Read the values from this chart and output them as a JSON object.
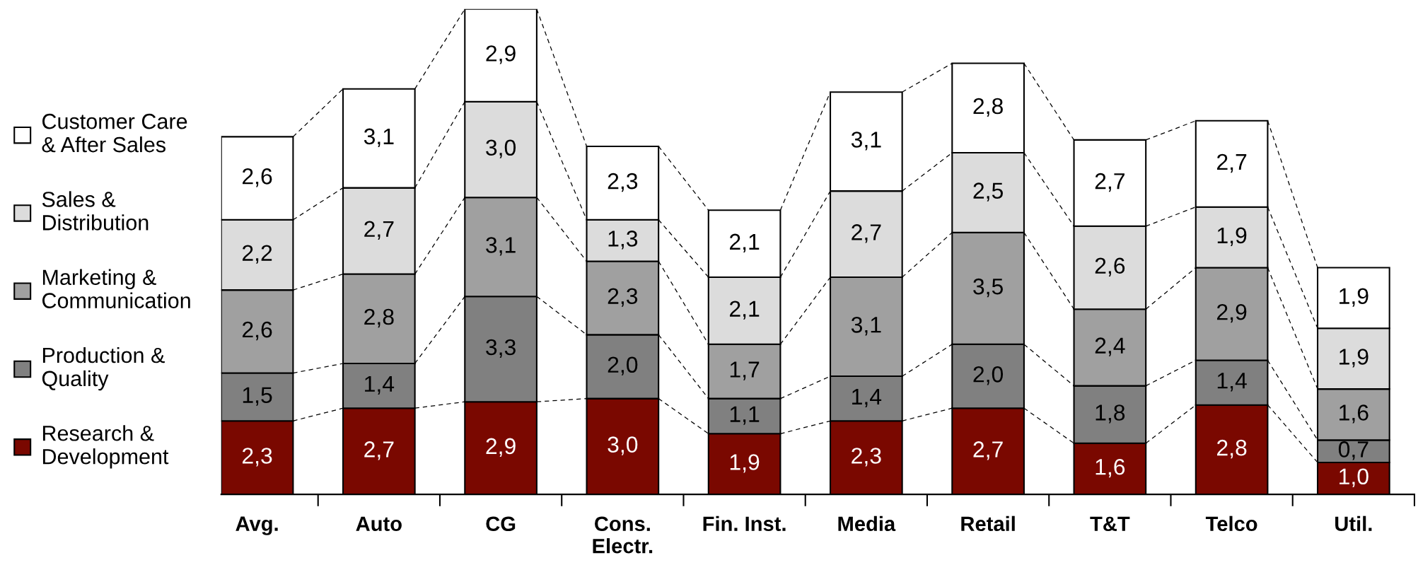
{
  "chart_data": {
    "type": "bar",
    "stacked": true,
    "legend": "left",
    "categories": [
      "Avg.",
      "Auto",
      "CG",
      "Cons.\nElectr.",
      "Fin. Inst.",
      "Media",
      "Retail",
      "T&T",
      "Telco",
      "Util."
    ],
    "series": [
      {
        "name": "Research &\nDevelopment",
        "color": "#7a0800",
        "values": [
          2.3,
          2.7,
          2.9,
          3.0,
          1.9,
          2.3,
          2.7,
          1.6,
          2.8,
          1.0
        ],
        "value_labels": [
          "2,3",
          "2,7",
          "2,9",
          "3,0",
          "1,9",
          "2,3",
          "2,7",
          "1,6",
          "2,8",
          "1,0"
        ]
      },
      {
        "name": "Production &\nQuality",
        "color": "#808080",
        "values": [
          1.5,
          1.4,
          3.3,
          2.0,
          1.1,
          1.4,
          2.0,
          1.8,
          1.4,
          0.7
        ],
        "value_labels": [
          "1,5",
          "1,4",
          "3,3",
          "2,0",
          "1,1",
          "1,4",
          "2,0",
          "1,8",
          "1,4",
          "0,7"
        ]
      },
      {
        "name": "Marketing &\nCommunication",
        "color": "#a0a0a0",
        "values": [
          2.6,
          2.8,
          3.1,
          2.3,
          1.7,
          3.1,
          3.5,
          2.4,
          2.9,
          1.6
        ],
        "value_labels": [
          "2,6",
          "2,8",
          "3,1",
          "2,3",
          "1,7",
          "3,1",
          "3,5",
          "2,4",
          "2,9",
          "1,6"
        ]
      },
      {
        "name": "Sales &\nDistribution",
        "color": "#dcdcdc",
        "values": [
          2.2,
          2.7,
          3.0,
          1.3,
          2.1,
          2.7,
          2.5,
          2.6,
          1.9,
          1.9
        ],
        "value_labels": [
          "2,2",
          "2,7",
          "3,0",
          "1,3",
          "2,1",
          "2,7",
          "2,5",
          "2,6",
          "1,9",
          "1,9"
        ]
      },
      {
        "name": "Customer Care\n& After Sales",
        "color": "#ffffff",
        "values": [
          2.6,
          3.1,
          2.9,
          2.3,
          2.1,
          3.1,
          2.8,
          2.7,
          2.7,
          1.9
        ],
        "value_labels": [
          "2,6",
          "3,1",
          "2,9",
          "2,3",
          "2,1",
          "3,1",
          "2,8",
          "2,7",
          "2,7",
          "1,9"
        ]
      }
    ]
  }
}
